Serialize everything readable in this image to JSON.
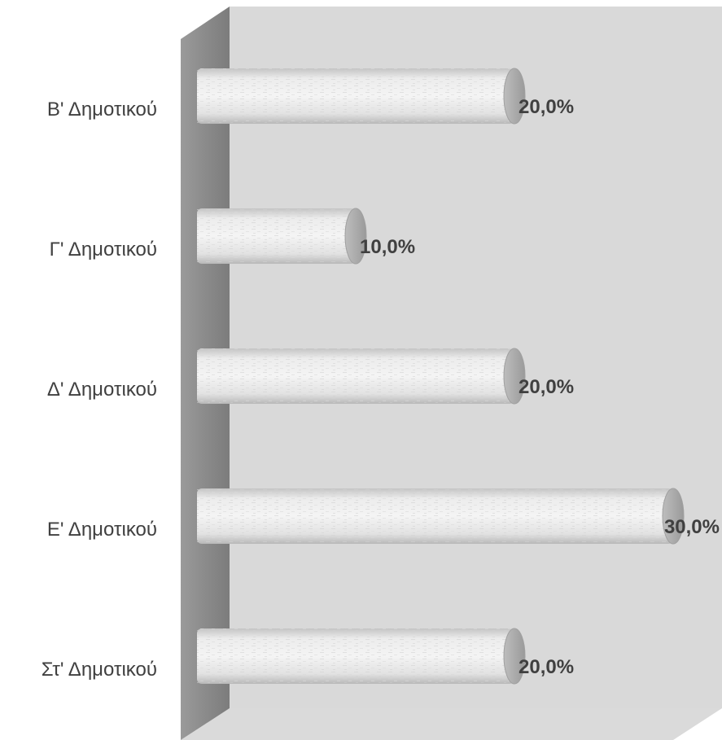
{
  "chart_data": {
    "type": "bar",
    "orientation": "horizontal",
    "style": "3d-cylinder",
    "categories": [
      "Β' Δημοτικού",
      "Γ' Δημοτικού",
      "Δ' Δημοτικού",
      "Ε' Δημοτικού",
      "Στ' Δημοτικού"
    ],
    "values": [
      20.0,
      10.0,
      20.0,
      30.0,
      20.0
    ],
    "value_labels": [
      "20,0%",
      "10,0%",
      "20,0%",
      "30,0%",
      "20,0%"
    ],
    "title": "",
    "xlabel": "",
    "ylabel": "",
    "xlim": [
      0,
      30
    ],
    "grid": false,
    "legend": "none",
    "colors": {
      "bar": "#e9e9e9",
      "bar_shade": "#b9b9b9",
      "bar_cap": "#a9a9a9",
      "back_wall": "#d9d9d9",
      "side_wall": "#8c8c8c",
      "label_text": "#404040"
    }
  }
}
